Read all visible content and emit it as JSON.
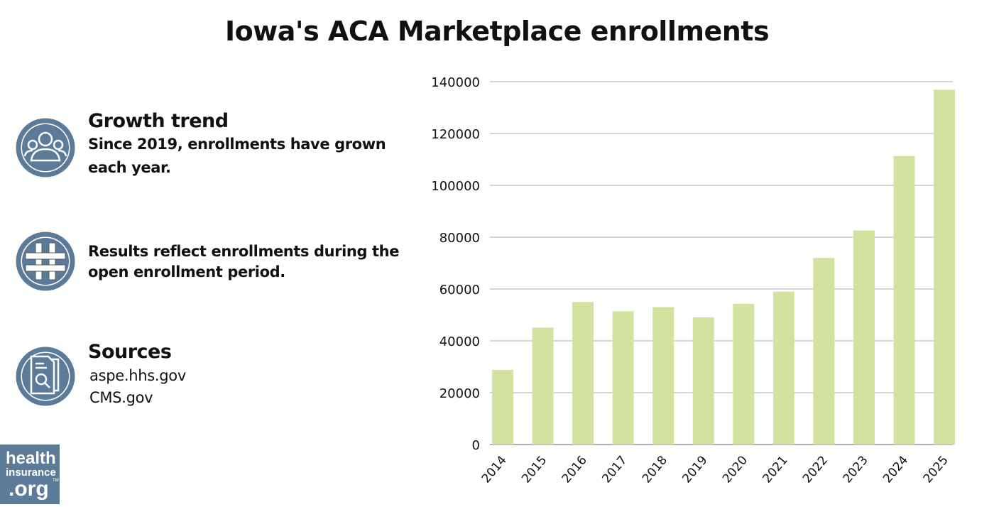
{
  "title": "Iowa's ACA Marketplace enrollments",
  "left_panel": {
    "growth": {
      "heading": "Growth trend",
      "line1": "Since 2019, enrollments have grown",
      "line2": "each year.",
      "icon": "people-icon"
    },
    "note": {
      "line1": "Results reflect enrollments during the",
      "line2": "open enrollment period.",
      "icon": "hashtag-icon"
    },
    "sources": {
      "heading": "Sources",
      "items": [
        "aspe.hhs.gov",
        "CMS.gov"
      ],
      "icon": "document-search-icon"
    },
    "logo": "healthinsurance.org"
  },
  "colors": {
    "bar": "#d1e39f",
    "icon": "#5b7b98",
    "grid": "#c8c8c8"
  },
  "chart_data": {
    "type": "bar",
    "categories": [
      "2014",
      "2015",
      "2016",
      "2017",
      "2018",
      "2019",
      "2020",
      "2021",
      "2022",
      "2023",
      "2024",
      "2025"
    ],
    "values": [
      28800,
      45100,
      55000,
      51400,
      53000,
      49100,
      54300,
      59000,
      72000,
      82600,
      111300,
      136900
    ],
    "ylim": [
      0,
      140000
    ],
    "yticks": [
      0,
      20000,
      40000,
      60000,
      80000,
      100000,
      120000,
      140000
    ],
    "grid": true,
    "xlabel": "",
    "ylabel": ""
  }
}
